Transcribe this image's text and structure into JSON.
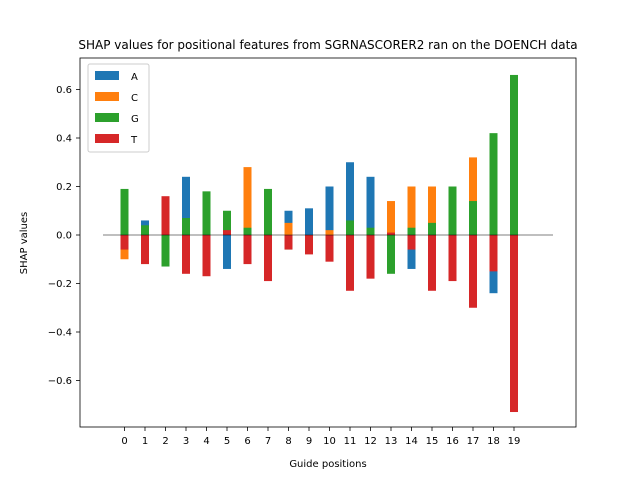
{
  "chart_data": {
    "type": "bar",
    "title": "SHAP values for positional features from SGRNASCORER2 ran on the DOENCH data",
    "xlabel": "Guide positions",
    "ylabel": "SHAP values",
    "ylim": [
      -0.8,
      0.72
    ],
    "yticks": [
      -0.6,
      -0.4,
      -0.2,
      0.0,
      0.2,
      0.4,
      0.6
    ],
    "ytick_labels": [
      "−0.6",
      "−0.4",
      "−0.2",
      "0.0",
      "0.2",
      "0.4",
      "0.6"
    ],
    "categories": [
      "0",
      "1",
      "2",
      "3",
      "4",
      "5",
      "6",
      "7",
      "8",
      "9",
      "10",
      "11",
      "12",
      "13",
      "14",
      "15",
      "16",
      "17",
      "18",
      "19"
    ],
    "legend_position": "top-left",
    "series": [
      {
        "name": "A",
        "color": "#1f77b4",
        "values": [
          0.0,
          0.06,
          0.0,
          0.24,
          0.0,
          -0.14,
          0.0,
          0.0,
          0.1,
          0.11,
          0.2,
          0.3,
          0.24,
          0.0,
          -0.14,
          0.0,
          0.0,
          0.0,
          -0.24,
          0.0
        ]
      },
      {
        "name": "C",
        "color": "#ff7f0e",
        "values": [
          -0.1,
          0.0,
          0.0,
          0.0,
          0.0,
          0.0,
          0.28,
          0.0,
          0.05,
          0.0,
          0.02,
          0.0,
          0.0,
          0.14,
          0.2,
          0.2,
          0.0,
          0.32,
          0.0,
          0.0
        ]
      },
      {
        "name": "G",
        "color": "#2ca02c",
        "values": [
          0.19,
          0.04,
          -0.13,
          0.07,
          0.18,
          0.1,
          0.03,
          0.19,
          -0.06,
          0.0,
          0.0,
          0.06,
          0.03,
          -0.16,
          0.03,
          0.05,
          0.2,
          0.14,
          0.42,
          0.66
        ]
      },
      {
        "name": "T",
        "color": "#d62728",
        "values": [
          -0.06,
          -0.12,
          0.16,
          -0.16,
          -0.17,
          0.02,
          -0.12,
          -0.19,
          -0.06,
          -0.08,
          -0.11,
          -0.23,
          -0.18,
          0.01,
          -0.06,
          -0.23,
          -0.19,
          -0.3,
          -0.15,
          -0.73
        ]
      }
    ]
  }
}
